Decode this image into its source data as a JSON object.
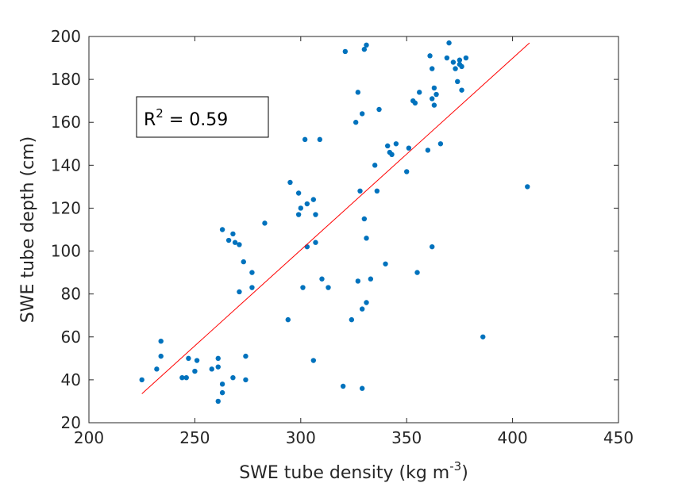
{
  "chart_data": {
    "type": "scatter",
    "xlabel": "SWE tube density (kg m",
    "xlabel_sup": "-3",
    "xlabel_end": ")",
    "ylabel": "SWE tube depth (cm)",
    "xlim": [
      200,
      450
    ],
    "ylim": [
      20,
      200
    ],
    "xticks": [
      "200",
      "250",
      "300",
      "350",
      "400",
      "450"
    ],
    "yticks": [
      "20",
      "40",
      "60",
      "80",
      "100",
      "120",
      "140",
      "160",
      "180",
      "200"
    ],
    "annotation": {
      "prefix": "R",
      "sup": "2",
      "suffix": " = 0.59"
    },
    "marker_color": "#0072BD",
    "fit_color": "#FF0000",
    "fit_line": {
      "x": [
        225,
        408
      ],
      "y": [
        33.5,
        197
      ]
    },
    "points": [
      [
        225,
        40
      ],
      [
        232,
        45
      ],
      [
        234,
        58
      ],
      [
        234,
        51
      ],
      [
        244,
        41
      ],
      [
        246,
        41
      ],
      [
        247,
        50
      ],
      [
        250,
        44
      ],
      [
        251,
        49
      ],
      [
        258,
        45
      ],
      [
        261,
        46
      ],
      [
        261,
        30
      ],
      [
        261,
        50
      ],
      [
        263,
        38
      ],
      [
        263,
        34
      ],
      [
        263,
        110
      ],
      [
        266,
        105
      ],
      [
        268,
        108
      ],
      [
        268,
        41
      ],
      [
        269,
        104
      ],
      [
        271,
        103
      ],
      [
        271,
        81
      ],
      [
        273,
        95
      ],
      [
        274,
        51
      ],
      [
        274,
        40
      ],
      [
        277,
        83
      ],
      [
        277,
        90
      ],
      [
        283,
        113
      ],
      [
        294,
        68
      ],
      [
        295,
        132
      ],
      [
        299,
        127
      ],
      [
        299,
        117
      ],
      [
        300,
        120
      ],
      [
        301,
        83
      ],
      [
        302,
        152
      ],
      [
        303,
        122
      ],
      [
        303,
        102
      ],
      [
        306,
        124
      ],
      [
        306,
        49
      ],
      [
        307,
        117
      ],
      [
        307,
        104
      ],
      [
        309,
        152
      ],
      [
        310,
        87
      ],
      [
        313,
        83
      ],
      [
        320,
        37
      ],
      [
        321,
        193
      ],
      [
        324,
        68
      ],
      [
        326,
        160
      ],
      [
        327,
        174
      ],
      [
        327,
        86
      ],
      [
        328,
        128
      ],
      [
        329,
        36
      ],
      [
        329,
        164
      ],
      [
        329,
        73
      ],
      [
        330,
        194
      ],
      [
        330,
        115
      ],
      [
        331,
        76
      ],
      [
        331,
        106
      ],
      [
        331,
        196
      ],
      [
        333,
        87
      ],
      [
        335,
        140
      ],
      [
        336,
        128
      ],
      [
        337,
        166
      ],
      [
        340,
        94
      ],
      [
        341,
        149
      ],
      [
        342,
        146
      ],
      [
        343,
        145
      ],
      [
        345,
        150
      ],
      [
        350,
        137
      ],
      [
        351,
        148
      ],
      [
        353,
        170
      ],
      [
        354,
        169
      ],
      [
        355,
        90
      ],
      [
        356,
        174
      ],
      [
        360,
        147
      ],
      [
        361,
        191
      ],
      [
        362,
        185
      ],
      [
        362,
        102
      ],
      [
        362,
        171
      ],
      [
        363,
        168
      ],
      [
        363,
        176
      ],
      [
        364,
        173
      ],
      [
        366,
        150
      ],
      [
        369,
        190
      ],
      [
        370,
        197
      ],
      [
        372,
        188
      ],
      [
        373,
        185
      ],
      [
        374,
        179
      ],
      [
        375,
        187
      ],
      [
        375,
        189
      ],
      [
        376,
        186
      ],
      [
        376,
        175
      ],
      [
        378,
        190
      ],
      [
        386,
        60
      ],
      [
        407,
        130
      ]
    ]
  }
}
